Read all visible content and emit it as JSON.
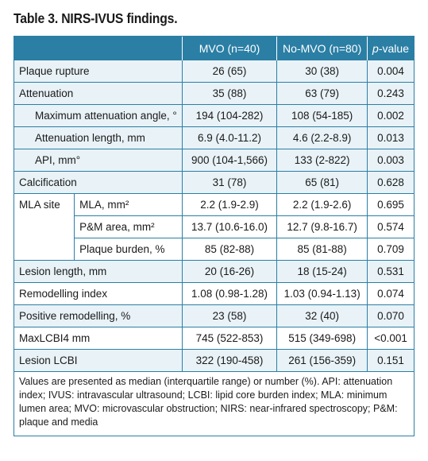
{
  "title": "Table 3. NIRS-IVUS findings.",
  "header": {
    "col_mvo": "MVO (n=40)",
    "col_nomvo": "No-MVO (n=80)",
    "col_p_italic": "p",
    "col_p_rest": "-value"
  },
  "rows": [
    {
      "label": "Plaque rupture",
      "mvo": "26 (65)",
      "nomvo": "30 (38)",
      "p": "0.004"
    },
    {
      "label": "Attenuation",
      "mvo": "35 (88)",
      "nomvo": "63 (79)",
      "p": "0.243"
    },
    {
      "label": "Maximum attenuation angle, °",
      "mvo": "194 (104-282)",
      "nomvo": "108 (54-185)",
      "p": "0.002"
    },
    {
      "label": "Attenuation length, mm",
      "mvo": "6.9 (4.0-11.2)",
      "nomvo": "4.6 (2.2-8.9)",
      "p": "0.013"
    },
    {
      "label": "API, mm°",
      "mvo": "900 (104-1,566)",
      "nomvo": "133 (2-822)",
      "p": "0.003"
    },
    {
      "label": "Calcification",
      "mvo": "31 (78)",
      "nomvo": "65 (81)",
      "p": "0.628"
    },
    {
      "group": "MLA site",
      "label": "MLA, mm²",
      "mvo": "2.2 (1.9-2.9)",
      "nomvo": "2.2 (1.9-2.6)",
      "p": "0.695"
    },
    {
      "label": "P&M area, mm²",
      "mvo": "13.7 (10.6-16.0)",
      "nomvo": "12.7 (9.8-16.7)",
      "p": "0.574"
    },
    {
      "label": "Plaque burden, %",
      "mvo": "85 (82-88)",
      "nomvo": "85 (81-88)",
      "p": "0.709"
    },
    {
      "label": "Lesion length, mm",
      "mvo": "20 (16-26)",
      "nomvo": "18 (15-24)",
      "p": "0.531"
    },
    {
      "label": "Remodelling index",
      "mvo": "1.08 (0.98-1.28)",
      "nomvo": "1.03 (0.94-1.13)",
      "p": "0.074"
    },
    {
      "label": "Positive remodelling, %",
      "mvo": "23 (58)",
      "nomvo": "32 (40)",
      "p": "0.070"
    },
    {
      "label": "MaxLCBI4 mm",
      "mvo": "745 (522-853)",
      "nomvo": "515 (349-698)",
      "p": "<0.001"
    },
    {
      "label": "Lesion LCBI",
      "mvo": "322 (190-458)",
      "nomvo": "261 (156-359)",
      "p": "0.151"
    }
  ],
  "footnote": "Values are presented as median (interquartile range) or number (%). API: attenuation index; IVUS: intravascular ultrasound; LCBI: lipid core burden index; MLA: minimum lumen area; MVO: microvascular obstruction; NIRS: near-infrared spectroscopy; P&M: plaque and media",
  "colors": {
    "header_bg": "#2b7fa5",
    "tint_bg": "#e8f2f7",
    "border": "#2b7fa5"
  }
}
